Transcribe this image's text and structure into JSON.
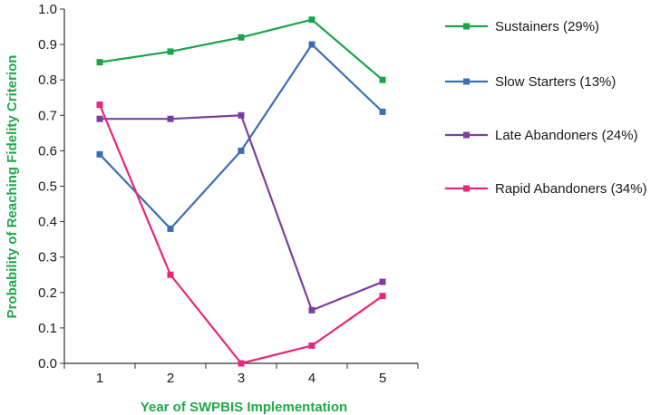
{
  "chart_data": {
    "type": "line",
    "xlabel": "Year of SWPBIS Implementation",
    "ylabel": "Probability of Reaching Fidelity Criterion",
    "x": [
      1,
      2,
      3,
      4,
      5
    ],
    "xticks": [
      "1",
      "2",
      "3",
      "4",
      "5"
    ],
    "yticks": [
      "0.0",
      "0.1",
      "0.2",
      "0.3",
      "0.4",
      "0.5",
      "0.6",
      "0.7",
      "0.8",
      "0.9",
      "1.0"
    ],
    "ylim": [
      0,
      1.0
    ],
    "xlim": [
      0.5,
      5.5
    ],
    "grid": false,
    "legend_position": "right",
    "series": [
      {
        "name": "Sustainers (29%)",
        "color": "#1aa34a",
        "values": [
          0.85,
          0.88,
          0.92,
          0.97,
          0.8
        ]
      },
      {
        "name": "Slow Starters (13%)",
        "color": "#3a6fb5",
        "values": [
          0.59,
          0.38,
          0.6,
          0.9,
          0.71
        ]
      },
      {
        "name": "Late Abandoners (24%)",
        "color": "#7b3fa0",
        "values": [
          0.69,
          0.69,
          0.7,
          0.15,
          0.23
        ]
      },
      {
        "name": "Rapid Abandoners (34%)",
        "color": "#e8267a",
        "values": [
          0.73,
          0.25,
          0.0,
          0.05,
          0.19
        ]
      }
    ]
  }
}
